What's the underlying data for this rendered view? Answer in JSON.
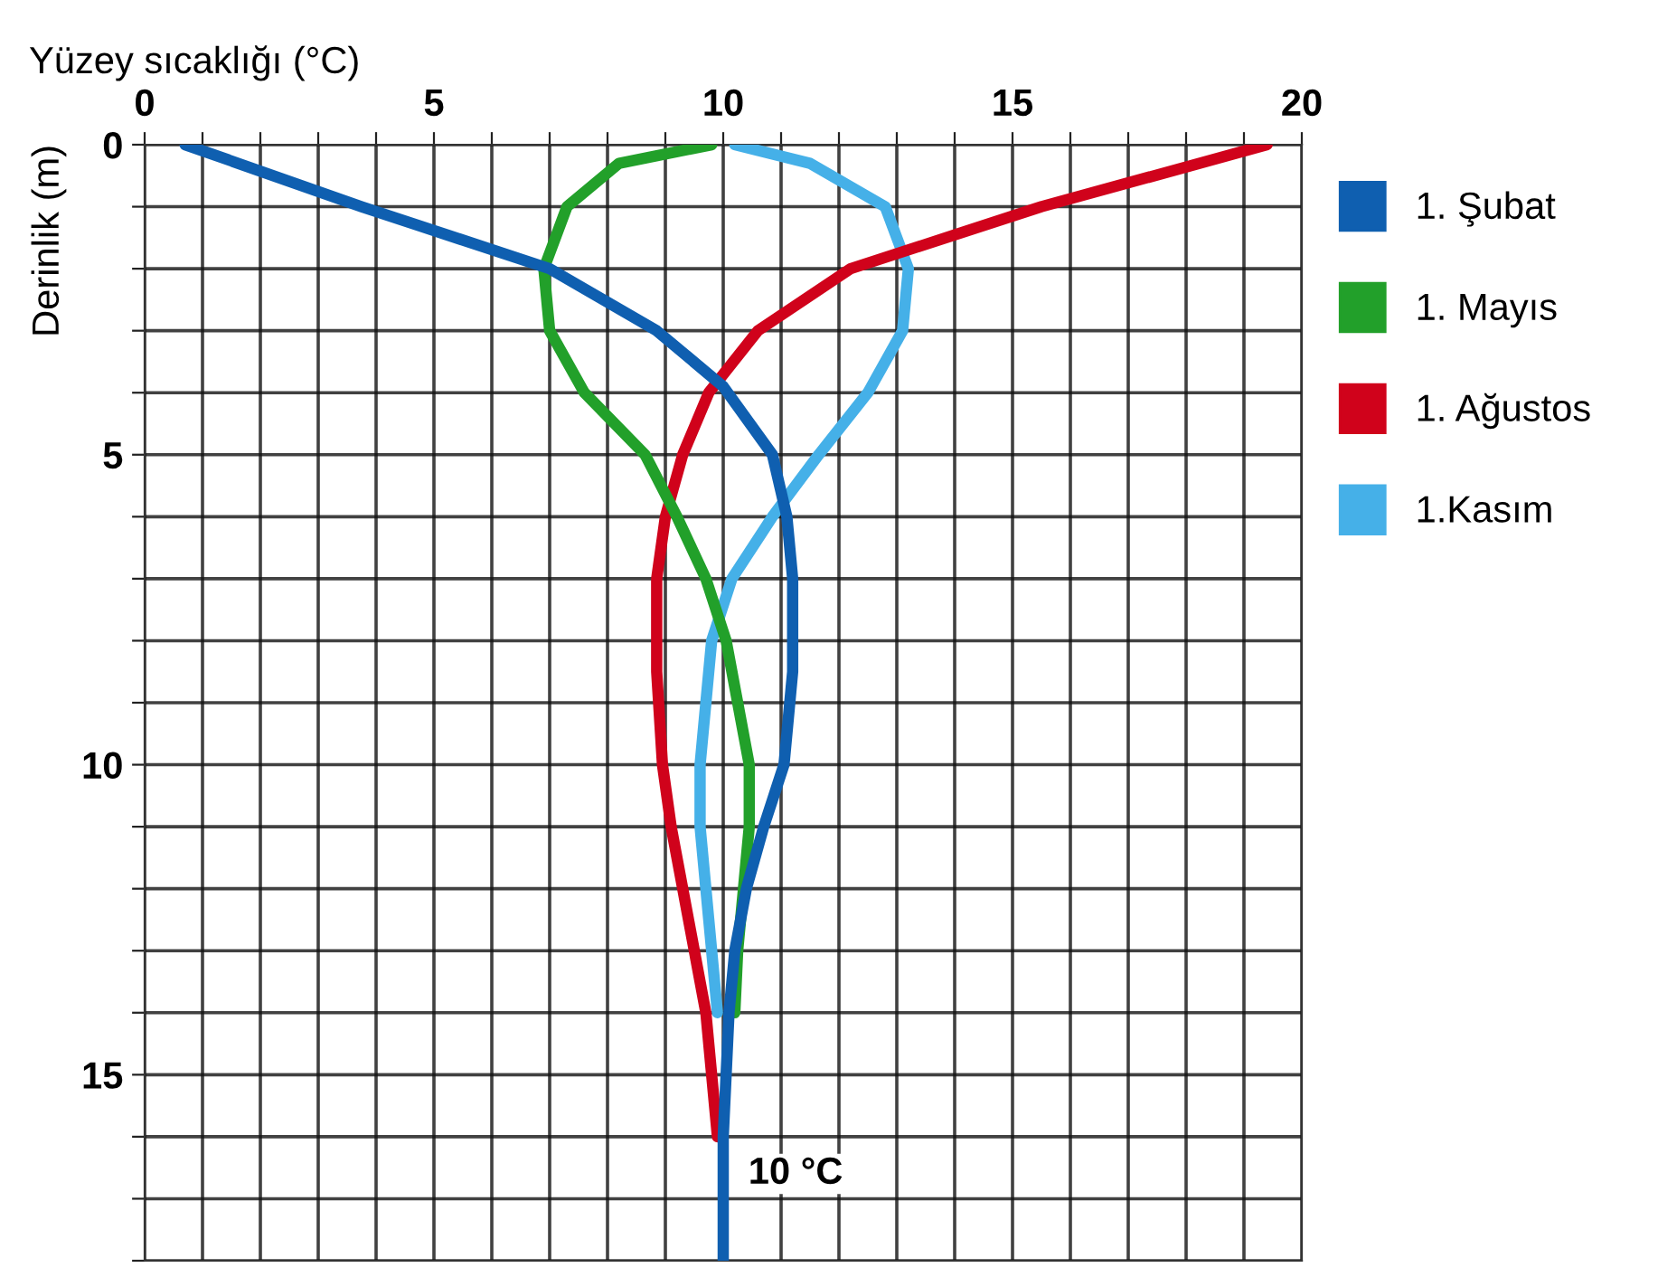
{
  "chart_data": {
    "type": "line",
    "xlabel": "Yüzey sıcaklığı (°C)",
    "ylabel": "Derinlik (m)",
    "xlim": [
      0,
      20
    ],
    "ylim": [
      18,
      0
    ],
    "xticks": [
      0,
      {
        "value": 1,
        "label": null
      },
      {
        "value": 2,
        "label": null
      },
      {
        "value": 3,
        "label": null
      },
      {
        "value": 4,
        "label": null
      },
      5,
      {
        "value": 6,
        "label": null
      },
      {
        "value": 7,
        "label": null
      },
      {
        "value": 8,
        "label": null
      },
      {
        "value": 9,
        "label": null
      },
      10,
      {
        "value": 11,
        "label": null
      },
      {
        "value": 12,
        "label": null
      },
      {
        "value": 13,
        "label": null
      },
      {
        "value": 14,
        "label": null
      },
      15,
      {
        "value": 16,
        "label": null
      },
      {
        "value": 17,
        "label": null
      },
      {
        "value": 18,
        "label": null
      },
      {
        "value": 19,
        "label": null
      },
      20
    ],
    "yticks": [
      0,
      {
        "value": 1,
        "label": null
      },
      {
        "value": 2,
        "label": null
      },
      {
        "value": 3,
        "label": null
      },
      {
        "value": 4,
        "label": null
      },
      5,
      {
        "value": 6,
        "label": null
      },
      {
        "value": 7,
        "label": null
      },
      {
        "value": 8,
        "label": null
      },
      {
        "value": 9,
        "label": null
      },
      10,
      {
        "value": 11,
        "label": null
      },
      {
        "value": 12,
        "label": null
      },
      {
        "value": 13,
        "label": null
      },
      {
        "value": 14,
        "label": null
      },
      15,
      {
        "value": 16,
        "label": null
      },
      {
        "value": 17,
        "label": null
      },
      {
        "value": 18,
        "label": null
      }
    ],
    "grid": true,
    "legend": "right",
    "marker": "none",
    "line_style": "solid",
    "annotations": [
      {
        "text": "10 °C",
        "x": 10,
        "y": 16.6
      }
    ],
    "series": [
      {
        "name": "1. Şubat",
        "color": "#0f5fb0",
        "x": [
          0.7,
          3.75,
          7.0,
          8.85,
          10.0,
          10.85,
          11.1,
          11.2,
          11.2,
          11.05,
          10.7,
          10.4,
          10.2,
          10.1,
          10.05,
          10.0,
          10.0,
          10.0
        ],
        "values": [
          0,
          1,
          2,
          3,
          3.9,
          5,
          6,
          7,
          8.5,
          10,
          11,
          12,
          13,
          14,
          15,
          16,
          17,
          18
        ]
      },
      {
        "name": "1. Mayıs",
        "color": "#22a02a",
        "x": [
          9.8,
          8.2,
          7.3,
          6.9,
          7.0,
          7.6,
          8.65,
          9.2,
          9.7,
          10.05,
          10.45,
          10.45,
          10.35,
          10.25,
          10.2
        ],
        "values": [
          0,
          0.3,
          1,
          2,
          3,
          4,
          5,
          6,
          7,
          8,
          10,
          11,
          12,
          13,
          14
        ]
      },
      {
        "name": "1. Ağustos",
        "color": "#d0021b",
        "x": [
          19.4,
          15.5,
          12.2,
          10.6,
          9.75,
          9.3,
          9.0,
          8.85,
          8.85,
          8.95,
          9.1,
          9.3,
          9.5,
          9.7,
          9.8,
          9.9
        ],
        "values": [
          0,
          1,
          2,
          3,
          4,
          5,
          6,
          7,
          8.5,
          10,
          11,
          12,
          13,
          14,
          15,
          16
        ]
      },
      {
        "name": "1.Kasım",
        "color": "#45b0e8",
        "x": [
          10.2,
          11.5,
          12.8,
          13.2,
          13.1,
          12.5,
          11.65,
          10.85,
          10.15,
          9.8,
          9.6,
          9.6,
          9.7,
          9.8,
          9.9
        ],
        "values": [
          0,
          0.3,
          1,
          2,
          3,
          4,
          5,
          6,
          7,
          8,
          10,
          11,
          12,
          13,
          14
        ]
      }
    ]
  }
}
